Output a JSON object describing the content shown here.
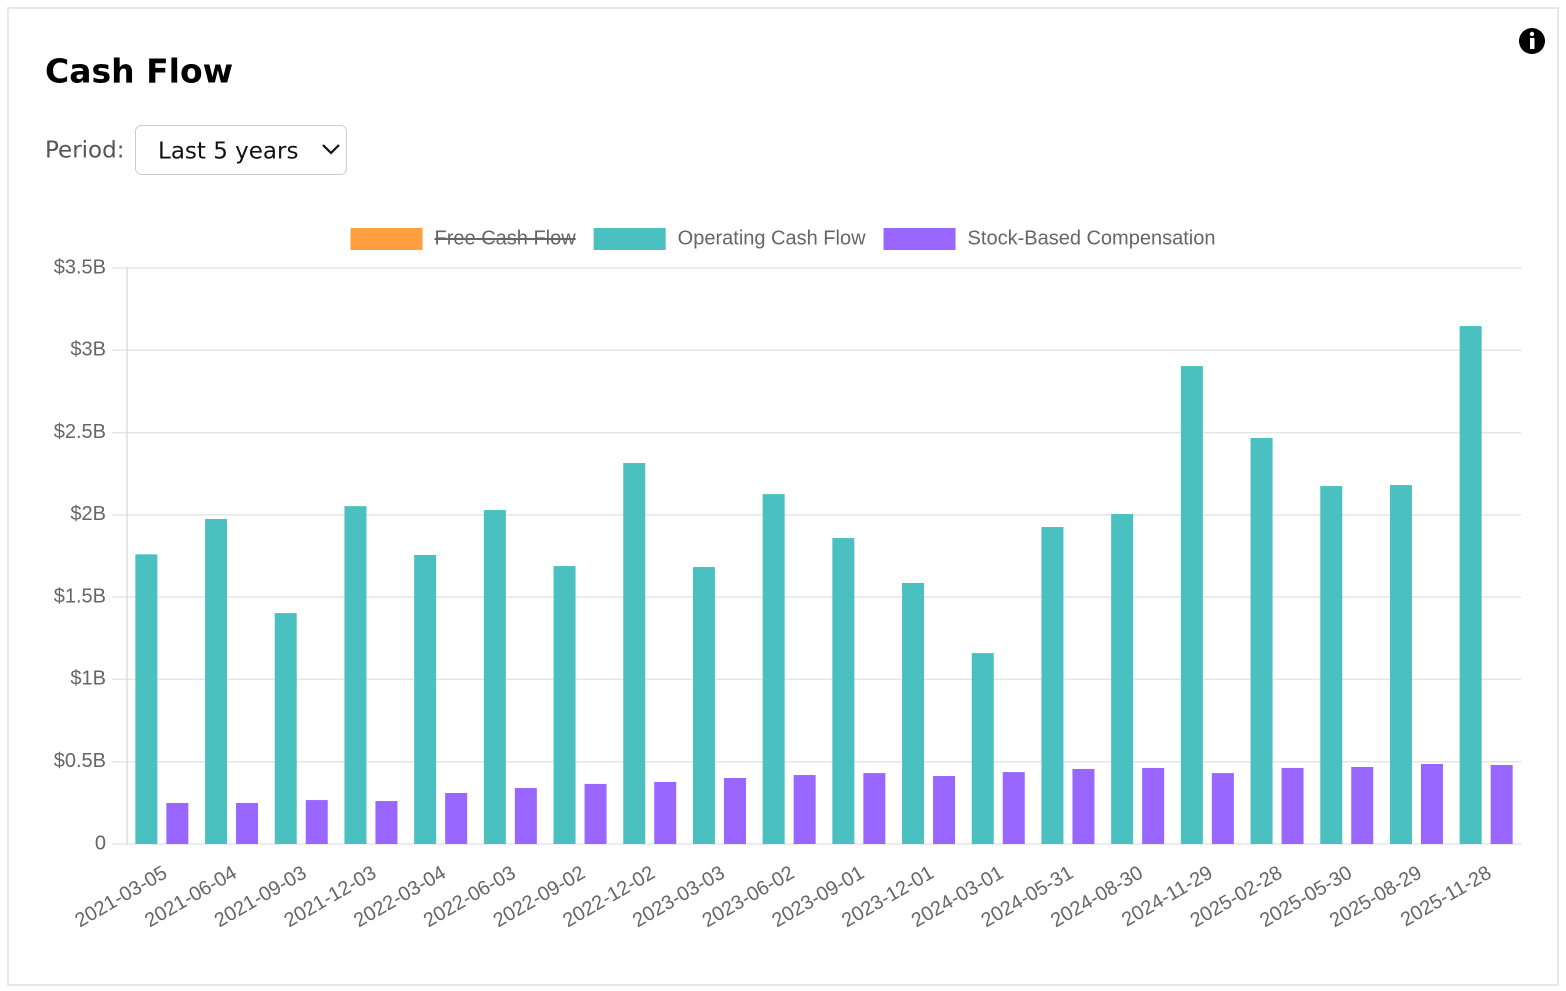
{
  "controls": {
    "period_label": "Period:",
    "period_value": "Last 5 years"
  },
  "chart_data": {
    "type": "bar",
    "title": "Cash Flow",
    "categories": [
      "2021-03-05",
      "2021-06-04",
      "2021-09-03",
      "2021-12-03",
      "2022-03-04",
      "2022-06-03",
      "2022-09-02",
      "2022-12-02",
      "2023-03-03",
      "2023-06-02",
      "2023-09-01",
      "2023-12-01",
      "2024-03-01",
      "2024-05-31",
      "2024-08-30",
      "2024-11-29",
      "2025-02-28",
      "2025-05-30",
      "2025-08-29",
      "2025-11-28"
    ],
    "series": [
      {
        "name": "Free Cash Flow",
        "color": "#ff9f40",
        "hidden": true
      },
      {
        "name": "Operating Cash Flow",
        "color": "#4bc0c0",
        "values": [
          1760000000,
          1975000000,
          1403000000,
          2053000000,
          1756000000,
          2029000000,
          1689000000,
          2315000000,
          1683000000,
          2126000000,
          1859000000,
          1586000000,
          1160000000,
          1926000000,
          2005000000,
          2904000000,
          2467000000,
          2175000000,
          2181000000,
          3147000000
        ]
      },
      {
        "name": "Stock-Based Compensation",
        "color": "#9966ff",
        "values": [
          249000000,
          249000000,
          267000000,
          261000000,
          310000000,
          340000000,
          365000000,
          377000000,
          401000000,
          419000000,
          431000000,
          413000000,
          437000000,
          456000000,
          462000000,
          431000000,
          462000000,
          468000000,
          486000000,
          480000000
        ]
      }
    ],
    "ylim": [
      0,
      3500000000
    ],
    "yticks": [
      0,
      {
        "value": 500000000,
        "label": "$0.5B"
      },
      {
        "value": 1000000000,
        "label": "$1B"
      },
      {
        "value": 1500000000,
        "label": "$1.5B"
      },
      {
        "value": 2000000000,
        "label": "$2B"
      },
      {
        "value": 2500000000,
        "label": "$2.5B"
      },
      {
        "value": 3000000000,
        "label": "$3B"
      },
      {
        "value": 3500000000,
        "label": "$3.5B"
      }
    ],
    "grid": true,
    "legend": "top"
  }
}
